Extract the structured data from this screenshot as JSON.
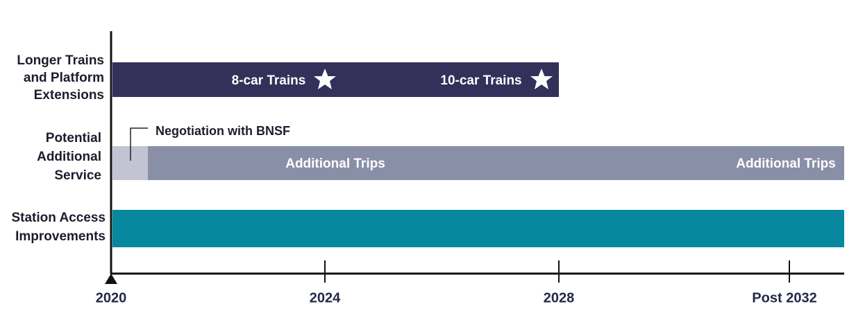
{
  "rows": [
    {
      "label": [
        "Longer Trains",
        "and Platform",
        "Extensions"
      ],
      "milestones": [
        "8-car Trains",
        "10-car Trains"
      ]
    },
    {
      "label": [
        "Potential",
        "Additional",
        "Service"
      ],
      "callout": "Negotiation with BNSF",
      "segments": [
        "Additional Trips",
        "Additional Trips"
      ]
    },
    {
      "label": [
        "Station Access",
        "Improvements"
      ]
    }
  ],
  "axis": {
    "ticks": [
      "2020",
      "2024",
      "2028",
      "Post 2032"
    ]
  }
}
